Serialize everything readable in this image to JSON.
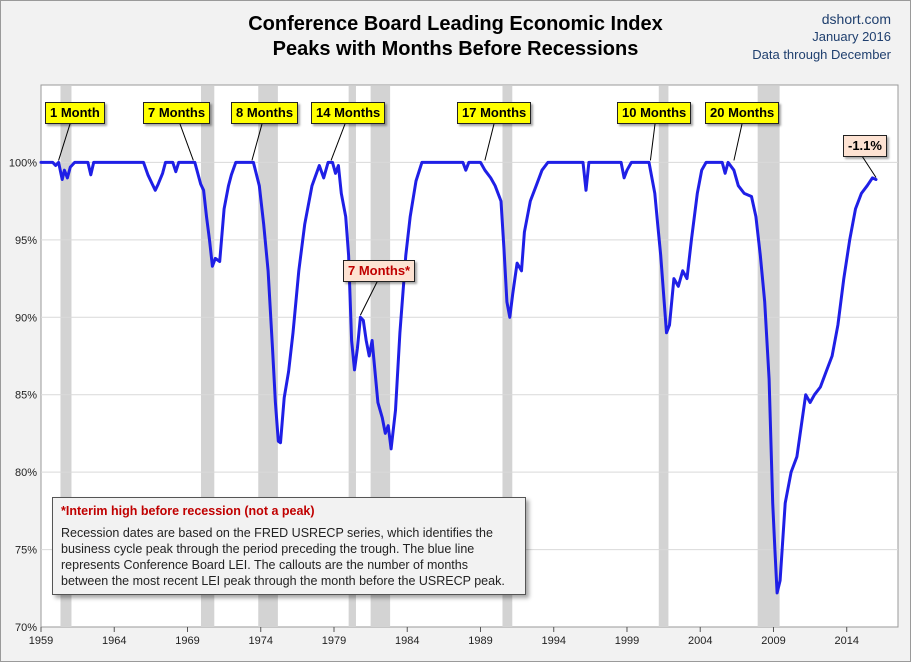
{
  "header": {
    "title_line1": "Conference Board Leading Economic Index",
    "title_line2": "Peaks with Months Before Recessions",
    "source_site": "dshort.com",
    "source_date": "January 2016",
    "source_note": "Data through December"
  },
  "colors": {
    "line": "#1f1fe6",
    "recession_band": "#d3d3d3",
    "gridline": "#d9d9d9",
    "callout_fill": "#ffff00",
    "interim_callout_fill": "#fde2d2",
    "interim_text": "#c00000",
    "source_text": "#1f3f6e"
  },
  "chart_data": {
    "type": "line",
    "title": "Conference Board Leading Economic Index Peaks with Months Before Recessions",
    "xlabel": "",
    "ylabel": "",
    "xlim": [
      1959.0,
      2017.5
    ],
    "ylim": [
      70,
      105
    ],
    "x_ticks": [
      "1959",
      "1964",
      "1969",
      "1974",
      "1979",
      "1984",
      "1989",
      "1994",
      "1999",
      "2004",
      "2009",
      "2014"
    ],
    "y_ticks": [
      "70%",
      "75%",
      "80%",
      "85%",
      "90%",
      "95%",
      "100%"
    ],
    "grid": "horizontal",
    "recessions": [
      [
        1960.33,
        1961.08
      ],
      [
        1969.92,
        1970.83
      ],
      [
        1973.83,
        1975.17
      ],
      [
        1980.0,
        1980.5
      ],
      [
        1981.5,
        1982.83
      ],
      [
        1990.5,
        1991.17
      ],
      [
        2001.17,
        2001.83
      ],
      [
        2007.92,
        2009.42
      ]
    ],
    "series": [
      {
        "values": [
          [
            1959.0,
            100
          ],
          [
            1959.8,
            100
          ],
          [
            1960.0,
            99.8
          ],
          [
            1960.2,
            100
          ],
          [
            1960.45,
            98.9
          ],
          [
            1960.6,
            99.5
          ],
          [
            1960.8,
            99.0
          ],
          [
            1961.0,
            99.7
          ],
          [
            1961.3,
            100
          ],
          [
            1962.2,
            100
          ],
          [
            1962.4,
            99.2
          ],
          [
            1962.6,
            100
          ],
          [
            1966.0,
            100
          ],
          [
            1966.3,
            99.2
          ],
          [
            1966.6,
            98.6
          ],
          [
            1966.8,
            98.2
          ],
          [
            1967.0,
            98.6
          ],
          [
            1967.3,
            99.3
          ],
          [
            1967.5,
            100
          ],
          [
            1968.0,
            100
          ],
          [
            1968.2,
            99.4
          ],
          [
            1968.4,
            100
          ],
          [
            1969.5,
            100
          ],
          [
            1969.9,
            98.6
          ],
          [
            1970.1,
            98.2
          ],
          [
            1970.3,
            96.5
          ],
          [
            1970.5,
            95.0
          ],
          [
            1970.7,
            93.3
          ],
          [
            1970.9,
            93.8
          ],
          [
            1971.2,
            93.6
          ],
          [
            1971.5,
            97.0
          ],
          [
            1971.8,
            98.5
          ],
          [
            1972.0,
            99.2
          ],
          [
            1972.3,
            100
          ],
          [
            1973.5,
            100
          ],
          [
            1973.9,
            98.5
          ],
          [
            1974.2,
            96.0
          ],
          [
            1974.5,
            93.0
          ],
          [
            1974.8,
            88.0
          ],
          [
            1975.0,
            84.5
          ],
          [
            1975.2,
            82.0
          ],
          [
            1975.35,
            81.9
          ],
          [
            1975.6,
            84.8
          ],
          [
            1975.9,
            86.5
          ],
          [
            1976.2,
            89.0
          ],
          [
            1976.6,
            93.0
          ],
          [
            1977.0,
            96.0
          ],
          [
            1977.5,
            98.5
          ],
          [
            1978.0,
            99.8
          ],
          [
            1978.3,
            99.0
          ],
          [
            1978.6,
            100
          ],
          [
            1978.9,
            100
          ],
          [
            1979.1,
            99.3
          ],
          [
            1979.3,
            99.8
          ],
          [
            1979.5,
            98.0
          ],
          [
            1979.8,
            96.5
          ],
          [
            1980.0,
            94.0
          ],
          [
            1980.2,
            88.5
          ],
          [
            1980.4,
            86.6
          ],
          [
            1980.6,
            88.0
          ],
          [
            1980.8,
            90.0
          ],
          [
            1981.0,
            89.8
          ],
          [
            1981.2,
            88.5
          ],
          [
            1981.4,
            87.5
          ],
          [
            1981.6,
            88.5
          ],
          [
            1981.8,
            86.5
          ],
          [
            1982.0,
            84.5
          ],
          [
            1982.3,
            83.5
          ],
          [
            1982.5,
            82.5
          ],
          [
            1982.7,
            83.0
          ],
          [
            1982.9,
            81.5
          ],
          [
            1983.2,
            84.0
          ],
          [
            1983.5,
            89.0
          ],
          [
            1983.9,
            94.0
          ],
          [
            1984.2,
            96.5
          ],
          [
            1984.6,
            98.8
          ],
          [
            1985.0,
            100
          ],
          [
            1987.8,
            100
          ],
          [
            1988.0,
            99.5
          ],
          [
            1988.2,
            100
          ],
          [
            1989.0,
            100
          ],
          [
            1989.3,
            99.5
          ],
          [
            1989.7,
            99.0
          ],
          [
            1990.0,
            98.5
          ],
          [
            1990.4,
            97.5
          ],
          [
            1990.6,
            94.5
          ],
          [
            1990.8,
            91.0
          ],
          [
            1991.0,
            90.0
          ],
          [
            1991.2,
            91.5
          ],
          [
            1991.5,
            93.5
          ],
          [
            1991.8,
            93.0
          ],
          [
            1992.0,
            95.5
          ],
          [
            1992.4,
            97.5
          ],
          [
            1992.8,
            98.5
          ],
          [
            1993.2,
            99.5
          ],
          [
            1993.6,
            100
          ],
          [
            1996.0,
            100
          ],
          [
            1996.2,
            98.2
          ],
          [
            1996.4,
            100
          ],
          [
            1998.6,
            100
          ],
          [
            1998.8,
            99.0
          ],
          [
            1999.0,
            99.5
          ],
          [
            1999.3,
            100
          ],
          [
            2000.5,
            100
          ],
          [
            2000.7,
            99.0
          ],
          [
            2000.9,
            98.0
          ],
          [
            2001.1,
            96.0
          ],
          [
            2001.3,
            94.0
          ],
          [
            2001.5,
            91.5
          ],
          [
            2001.7,
            89.0
          ],
          [
            2001.9,
            89.5
          ],
          [
            2002.2,
            92.5
          ],
          [
            2002.5,
            92.0
          ],
          [
            2002.8,
            93.0
          ],
          [
            2003.1,
            92.5
          ],
          [
            2003.4,
            95.0
          ],
          [
            2003.8,
            98.0
          ],
          [
            2004.1,
            99.5
          ],
          [
            2004.4,
            100
          ],
          [
            2005.5,
            100
          ],
          [
            2005.7,
            99.3
          ],
          [
            2005.9,
            100
          ],
          [
            2006.3,
            99.5
          ],
          [
            2006.6,
            98.5
          ],
          [
            2007.0,
            98.0
          ],
          [
            2007.5,
            97.8
          ],
          [
            2007.8,
            96.5
          ],
          [
            2008.1,
            94.0
          ],
          [
            2008.4,
            91.0
          ],
          [
            2008.7,
            86.0
          ],
          [
            2008.95,
            78.0
          ],
          [
            2009.1,
            75.0
          ],
          [
            2009.25,
            72.2
          ],
          [
            2009.45,
            73.0
          ],
          [
            2009.8,
            78.0
          ],
          [
            2010.2,
            80.0
          ],
          [
            2010.6,
            81.0
          ],
          [
            2010.9,
            83.0
          ],
          [
            2011.2,
            85.0
          ],
          [
            2011.5,
            84.5
          ],
          [
            2011.8,
            85.0
          ],
          [
            2012.2,
            85.5
          ],
          [
            2012.6,
            86.5
          ],
          [
            2013.0,
            87.5
          ],
          [
            2013.4,
            89.5
          ],
          [
            2013.8,
            92.5
          ],
          [
            2014.2,
            95.0
          ],
          [
            2014.6,
            97.0
          ],
          [
            2015.0,
            98.0
          ],
          [
            2015.4,
            98.5
          ],
          [
            2015.75,
            99.0
          ],
          [
            2016.0,
            98.9
          ]
        ]
      }
    ],
    "callouts": [
      {
        "label": "1 Month",
        "x": 1960.2,
        "y": 100
      },
      {
        "label": "7 Months",
        "x": 1969.4,
        "y": 100
      },
      {
        "label": "8 Months",
        "x": 1973.4,
        "y": 100
      },
      {
        "label": "14 Months",
        "x": 1978.8,
        "y": 100
      },
      {
        "label": "17 Months",
        "x": 1989.3,
        "y": 100
      },
      {
        "label": "10 Months",
        "x": 2000.6,
        "y": 100
      },
      {
        "label": "20 Months",
        "x": 2006.3,
        "y": 100
      },
      {
        "label": "7 Months*",
        "x": 1980.8,
        "y": 90
      },
      {
        "label": "-1.1%",
        "x": 2016.0,
        "y": 98.9
      }
    ]
  },
  "note": {
    "head": "*Interim high before recession (not a peak)",
    "body": "Recession dates are based on the FRED USRECP series, which identifies the business cycle peak through the period preceding the trough. The blue line represents Conference Board LEI. The callouts are the number of months between the most recent LEI peak through the month  before the USRECP peak."
  }
}
